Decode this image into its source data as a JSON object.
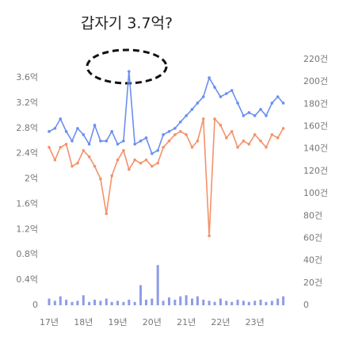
{
  "chart_data": {
    "type": "combo",
    "title": "갑자기 3.7억?",
    "x": [
      2017,
      2017.17,
      2017.33,
      2017.5,
      2017.67,
      2017.83,
      2018,
      2018.17,
      2018.33,
      2018.5,
      2018.67,
      2018.83,
      2019,
      2019.17,
      2019.33,
      2019.5,
      2019.67,
      2019.83,
      2020,
      2020.17,
      2020.33,
      2020.5,
      2020.67,
      2020.83,
      2021,
      2021.17,
      2021.33,
      2021.5,
      2021.67,
      2021.83,
      2022,
      2022.17,
      2022.33,
      2022.5,
      2022.67,
      2022.83,
      2023,
      2023.17,
      2023.33,
      2023.5,
      2023.67,
      2023.83
    ],
    "series": [
      {
        "type": "line",
        "color": "#6b8ff0",
        "values": [
          2.75,
          2.8,
          2.95,
          2.75,
          2.6,
          2.8,
          2.7,
          2.55,
          2.85,
          2.6,
          2.6,
          2.75,
          2.55,
          2.6,
          3.7,
          2.55,
          2.6,
          2.65,
          2.4,
          2.45,
          2.7,
          2.75,
          2.8,
          2.9,
          3.0,
          3.1,
          3.2,
          3.3,
          3.6,
          3.45,
          3.3,
          3.35,
          3.4,
          3.2,
          3.0,
          3.05,
          3.0,
          3.1,
          3.0,
          3.2,
          3.3,
          3.2
        ]
      },
      {
        "type": "line",
        "color": "#f4926a",
        "values": [
          2.5,
          2.3,
          2.5,
          2.55,
          2.2,
          2.25,
          2.45,
          2.35,
          2.2,
          2.0,
          1.45,
          2.05,
          2.3,
          2.45,
          2.15,
          2.3,
          2.25,
          2.3,
          2.2,
          2.25,
          2.5,
          2.6,
          2.7,
          2.75,
          2.7,
          2.5,
          2.6,
          2.95,
          1.1,
          2.95,
          2.85,
          2.65,
          2.75,
          2.5,
          2.6,
          2.55,
          2.7,
          2.6,
          2.5,
          2.7,
          2.65,
          2.8
        ]
      },
      {
        "type": "bar",
        "axis": "y2",
        "color": "#8e9be8",
        "values": [
          6,
          4,
          8,
          5,
          3,
          4,
          9,
          3,
          5,
          4,
          6,
          3,
          4,
          3,
          5,
          3,
          18,
          5,
          6,
          36,
          4,
          7,
          5,
          8,
          9,
          6,
          8,
          5,
          4,
          3,
          6,
          4,
          3,
          5,
          4,
          3,
          4,
          5,
          3,
          4,
          6,
          8
        ]
      }
    ],
    "xlim": [
      2017,
      2024
    ],
    "xticks": [
      {
        "value": 2017,
        "label": "17년"
      },
      {
        "value": 2018,
        "label": "18년"
      },
      {
        "value": 2019,
        "label": "19년"
      },
      {
        "value": 2020,
        "label": "20년"
      },
      {
        "value": 2021,
        "label": "21년"
      },
      {
        "value": 2022,
        "label": "22년"
      },
      {
        "value": 2023,
        "label": "23년"
      }
    ],
    "ylim": [
      0,
      3.89
    ],
    "yticks": [
      0,
      {
        "value": 0.4,
        "label": "0.4억"
      },
      {
        "value": 0.8,
        "label": "0.8억"
      },
      {
        "value": 1.2,
        "label": "1.2억"
      },
      {
        "value": 1.6,
        "label": "1.6억"
      },
      {
        "value": 2,
        "label": "2억"
      },
      {
        "value": 2.4,
        "label": "2.4억"
      },
      {
        "value": 2.8,
        "label": "2.8억"
      },
      {
        "value": 3.2,
        "label": "3.2억"
      },
      {
        "value": 3.6,
        "label": "3.6억"
      }
    ],
    "y2lim": [
      0,
      220
    ],
    "y2ticks": [
      0,
      {
        "value": 20,
        "label": "20건"
      },
      {
        "value": 40,
        "label": "40건"
      },
      {
        "value": 60,
        "label": "60건"
      },
      {
        "value": 80,
        "label": "80건"
      },
      {
        "value": 100,
        "label": "100건"
      },
      {
        "value": 120,
        "label": "120건"
      },
      {
        "value": 140,
        "label": "140건"
      },
      {
        "value": 160,
        "label": "160건"
      },
      {
        "value": 180,
        "label": "180건"
      },
      {
        "value": 200,
        "label": "200건"
      },
      {
        "value": 220,
        "label": "220건"
      }
    ]
  }
}
